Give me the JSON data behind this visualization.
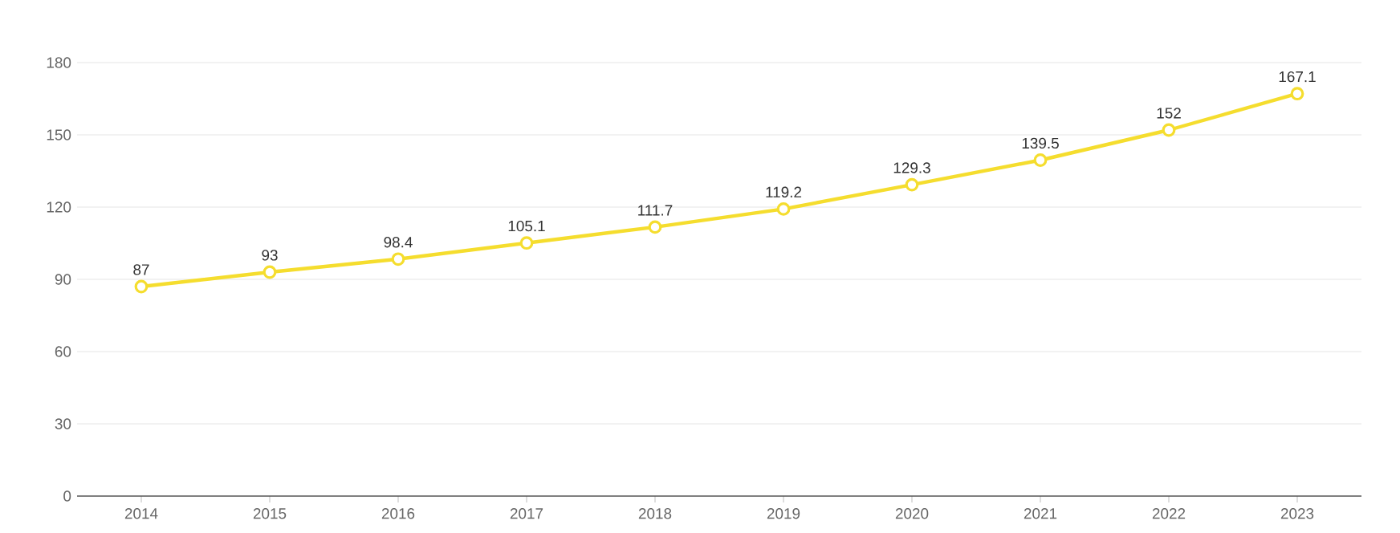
{
  "chart_data": {
    "type": "line",
    "categories": [
      "2014",
      "2015",
      "2016",
      "2017",
      "2018",
      "2019",
      "2020",
      "2021",
      "2022",
      "2023"
    ],
    "values": [
      87,
      93,
      98.4,
      105.1,
      111.7,
      119.2,
      129.3,
      139.5,
      152,
      167.1
    ],
    "color": "#f5dd2e",
    "ylim": [
      0,
      180
    ],
    "yticks": [
      0,
      30,
      60,
      90,
      120,
      150,
      180
    ],
    "grid": "y",
    "data_labels": true,
    "marker": "circle",
    "line_style": "solid"
  }
}
